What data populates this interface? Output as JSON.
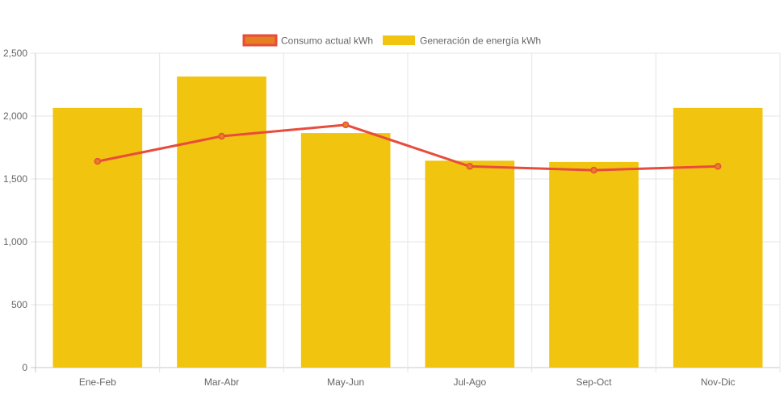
{
  "colors": {
    "bar_fill": "#f1c40f",
    "line_stroke": "#e74c3c",
    "line_legend_fill": "#e67e22",
    "grid": "#e5e5e5",
    "axis_text": "#666666"
  },
  "chart_data": {
    "type": "bar",
    "title": "",
    "xlabel": "",
    "ylabel": "",
    "categories": [
      "Ene-Feb",
      "Mar-Abr",
      "May-Jun",
      "Jul-Ago",
      "Sep-Oct",
      "Nov-Dic"
    ],
    "ylim": [
      0,
      2500
    ],
    "yticks": [
      0,
      500,
      1000,
      1500,
      2000,
      2500
    ],
    "ytick_labels": [
      "0",
      "500",
      "1,000",
      "1,500",
      "2,000",
      "2,500"
    ],
    "grid": true,
    "legend_position": "top-center",
    "series": [
      {
        "name": "Consumo actual kWh",
        "type": "line",
        "values": [
          1640,
          1840,
          1930,
          1600,
          1570,
          1600
        ]
      },
      {
        "name": "Generación de energía kWh",
        "type": "bar",
        "values": [
          2065,
          2315,
          1865,
          1645,
          1635,
          2065
        ]
      }
    ]
  }
}
